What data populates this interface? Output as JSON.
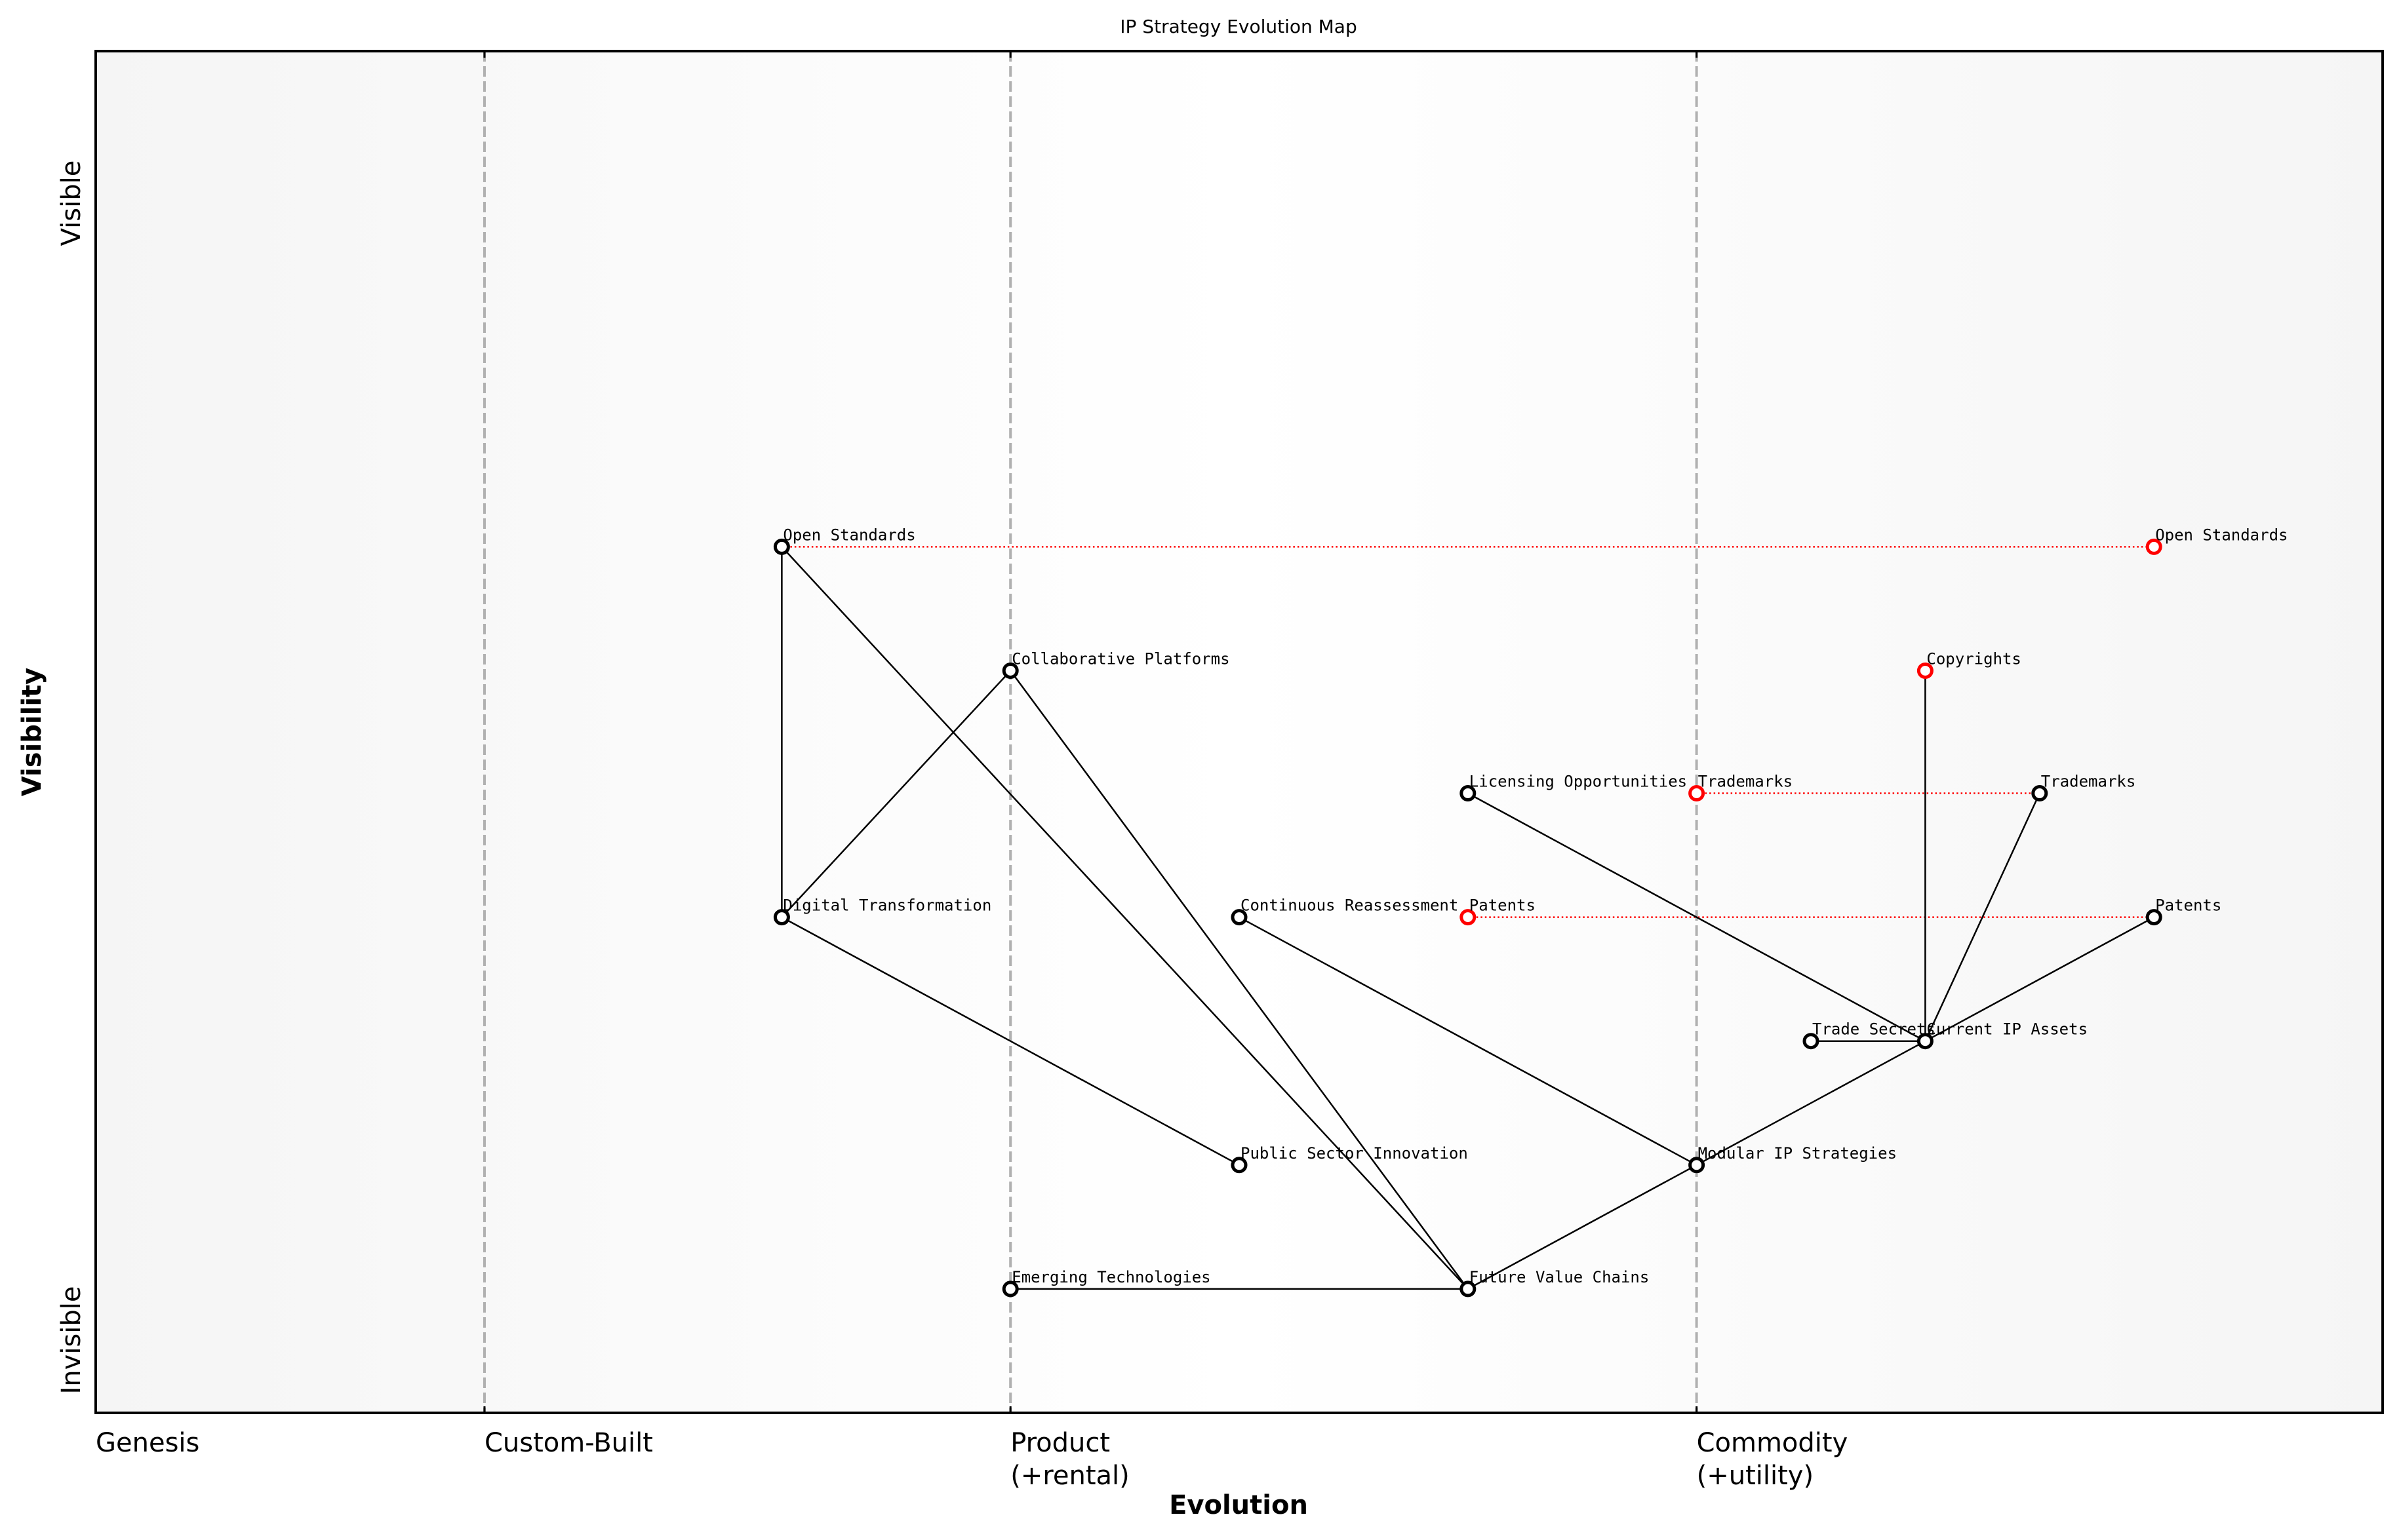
{
  "chart_data": {
    "type": "scatter",
    "subtype": "wardley-map",
    "title": "IP Strategy Evolution Map",
    "xlabel": "Evolution",
    "ylabel": "Visibility",
    "xlim": [
      0,
      1
    ],
    "ylim": [
      0,
      1
    ],
    "grid": false,
    "x_ticks": [
      {
        "value": 0.0,
        "label": "Genesis"
      },
      {
        "value": 0.17,
        "label": "Custom-Built"
      },
      {
        "value": 0.4,
        "label": "Product\n(+rental)"
      },
      {
        "value": 0.7,
        "label": "Commodity\n(+utility)"
      }
    ],
    "y_ticks": [
      {
        "value": 0.1,
        "label": "Invisible"
      },
      {
        "value": 0.9,
        "label": "Visible"
      }
    ],
    "stage_lines": [
      0.17,
      0.4,
      0.7
    ],
    "colors": {
      "node_stroke": "#000000",
      "evolved_node_stroke": "#ff0000",
      "edge": "#000000",
      "evolution_line": "#ff0000",
      "stage_line": "#b0b0b0",
      "background_edge": "#f5f5f5",
      "background_center": "#ffffff"
    },
    "components": [
      {
        "name": "Open Standards",
        "x": 0.3,
        "y": 0.636,
        "evolved": false
      },
      {
        "name": "Collaborative Platforms",
        "x": 0.4,
        "y": 0.545,
        "evolved": false
      },
      {
        "name": "Licensing Opportunities",
        "x": 0.6,
        "y": 0.455,
        "evolved": false
      },
      {
        "name": "Digital Transformation",
        "x": 0.3,
        "y": 0.364,
        "evolved": false
      },
      {
        "name": "Continuous Reassessment",
        "x": 0.5,
        "y": 0.364,
        "evolved": false
      },
      {
        "name": "Trade Secrets",
        "x": 0.75,
        "y": 0.273,
        "evolved": false
      },
      {
        "name": "Current IP Assets",
        "x": 0.8,
        "y": 0.273,
        "evolved": false
      },
      {
        "name": "Public Sector Innovation",
        "x": 0.5,
        "y": 0.182,
        "evolved": false
      },
      {
        "name": "Modular IP Strategies",
        "x": 0.7,
        "y": 0.182,
        "evolved": false
      },
      {
        "name": "Emerging Technologies",
        "x": 0.4,
        "y": 0.091,
        "evolved": false
      },
      {
        "name": "Future Value Chains",
        "x": 0.6,
        "y": 0.091,
        "evolved": false
      },
      {
        "name": "Trademarks",
        "x": 0.85,
        "y": 0.455,
        "evolved": false
      },
      {
        "name": "Patents",
        "x": 0.9,
        "y": 0.364,
        "evolved": false
      },
      {
        "name": "Open Standards",
        "x": 0.9,
        "y": 0.636,
        "evolved": true
      },
      {
        "name": "Copyrights",
        "x": 0.8,
        "y": 0.545,
        "evolved": true
      },
      {
        "name": "Trademarks",
        "x": 0.7,
        "y": 0.455,
        "evolved": true
      },
      {
        "name": "Patents",
        "x": 0.6,
        "y": 0.364,
        "evolved": true
      }
    ],
    "edges": [
      {
        "from": [
          0.3,
          0.636
        ],
        "to": [
          0.3,
          0.364
        ],
        "label": "Open Standards -> Digital Transformation"
      },
      {
        "from": [
          0.3,
          0.636
        ],
        "to": [
          0.6,
          0.091
        ],
        "label": "Open Standards -> Future Value Chains"
      },
      {
        "from": [
          0.4,
          0.545
        ],
        "to": [
          0.3,
          0.364
        ],
        "label": "Collaborative Platforms -> Digital Transformation"
      },
      {
        "from": [
          0.4,
          0.545
        ],
        "to": [
          0.6,
          0.091
        ],
        "label": "Collaborative Platforms -> Future Value Chains"
      },
      {
        "from": [
          0.3,
          0.364
        ],
        "to": [
          0.5,
          0.182
        ],
        "label": "Digital Transformation -> Public Sector Innovation"
      },
      {
        "from": [
          0.5,
          0.364
        ],
        "to": [
          0.7,
          0.182
        ],
        "label": "Continuous Reassessment -> Modular IP Strategies"
      },
      {
        "from": [
          0.4,
          0.091
        ],
        "to": [
          0.6,
          0.091
        ],
        "label": "Emerging Technologies -> Future Value Chains"
      },
      {
        "from": [
          0.6,
          0.091
        ],
        "to": [
          0.7,
          0.182
        ],
        "label": "Future Value Chains -> Modular IP Strategies"
      },
      {
        "from": [
          0.7,
          0.182
        ],
        "to": [
          0.8,
          0.273
        ],
        "label": "Modular IP Strategies -> Current IP Assets"
      },
      {
        "from": [
          0.6,
          0.455
        ],
        "to": [
          0.8,
          0.273
        ],
        "label": "Licensing Opportunities -> Current IP Assets"
      },
      {
        "from": [
          0.75,
          0.273
        ],
        "to": [
          0.8,
          0.273
        ],
        "label": "Trade Secrets -> Current IP Assets"
      },
      {
        "from": [
          0.8,
          0.273
        ],
        "to": [
          0.8,
          0.545
        ],
        "label": "Current IP Assets -> Copyrights"
      },
      {
        "from": [
          0.8,
          0.273
        ],
        "to": [
          0.85,
          0.455
        ],
        "label": "Current IP Assets -> Trademarks"
      },
      {
        "from": [
          0.8,
          0.273
        ],
        "to": [
          0.9,
          0.364
        ],
        "label": "Current IP Assets -> Patents"
      }
    ],
    "evolution_lines": [
      {
        "name": "Open Standards",
        "from": [
          0.3,
          0.636
        ],
        "to": [
          0.9,
          0.636
        ]
      },
      {
        "name": "Trademarks",
        "from": [
          0.7,
          0.455
        ],
        "to": [
          0.85,
          0.455
        ]
      },
      {
        "name": "Patents",
        "from": [
          0.6,
          0.364
        ],
        "to": [
          0.9,
          0.364
        ]
      }
    ]
  }
}
